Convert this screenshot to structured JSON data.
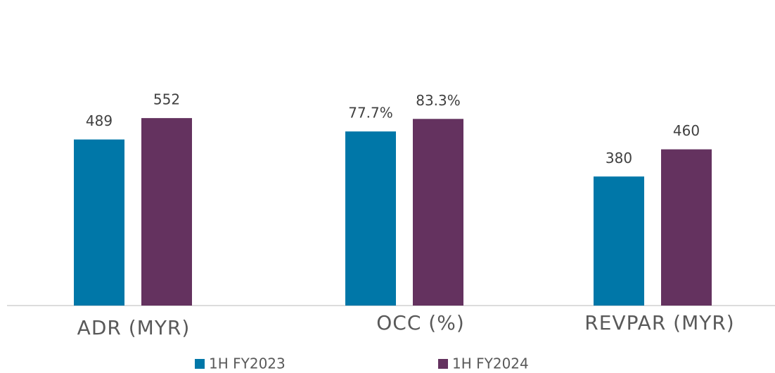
{
  "chart_data": {
    "type": "bar",
    "categories": [
      "ADR (MYR)",
      "OCC (%)",
      "REVPAR (MYR)"
    ],
    "series": [
      {
        "name": "1H FY2023",
        "color": "#0077a8",
        "values": [
          489,
          77.7,
          380
        ],
        "value_labels": [
          "489",
          "77.7%",
          "380"
        ]
      },
      {
        "name": "1H FY2024",
        "color": "#64325f",
        "values": [
          552,
          83.3,
          460
        ],
        "value_labels": [
          "552",
          "83.3%",
          "460"
        ]
      }
    ]
  }
}
